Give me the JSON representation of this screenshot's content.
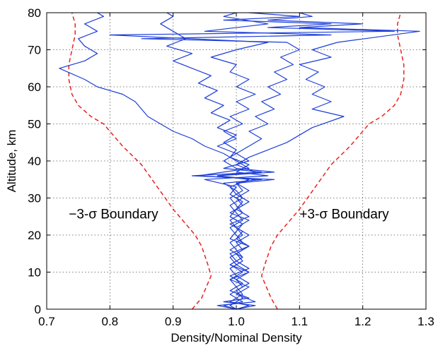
{
  "chart_data": {
    "type": "line",
    "title": "",
    "xlabel": "Density/Nominal Density",
    "ylabel": "Altitude, km",
    "xlim": [
      0.7,
      1.3
    ],
    "ylim": [
      0,
      80
    ],
    "xticks": [
      0.7,
      0.8,
      0.9,
      1.0,
      1.1,
      1.2,
      1.3
    ],
    "xtick_labels": [
      "0.7",
      "0.8",
      "0.9",
      "1.0",
      "1.1",
      "1.2",
      "1.3"
    ],
    "yticks": [
      0,
      10,
      20,
      30,
      40,
      50,
      60,
      70,
      80
    ],
    "ytick_labels": [
      "0",
      "10",
      "20",
      "30",
      "40",
      "50",
      "60",
      "70",
      "80"
    ],
    "grid": true,
    "grid_style": "dotted",
    "annotations": [
      {
        "text": "−3-σ Boundary",
        "x": 0.735,
        "y": 24.5
      },
      {
        "text": "+3-σ Boundary",
        "x": 1.1,
        "y": 24.5
      }
    ],
    "boundaries": [
      {
        "name": "minus-3-sigma",
        "color": "#e8231e",
        "style": "dashed",
        "points": [
          [
            0.93,
            0
          ],
          [
            0.945,
            3
          ],
          [
            0.955,
            7
          ],
          [
            0.96,
            9
          ],
          [
            0.955,
            12
          ],
          [
            0.945,
            17
          ],
          [
            0.935,
            20
          ],
          [
            0.92,
            23
          ],
          [
            0.9,
            27
          ],
          [
            0.875,
            33
          ],
          [
            0.85,
            39
          ],
          [
            0.82,
            44
          ],
          [
            0.8,
            48
          ],
          [
            0.79,
            50
          ],
          [
            0.77,
            52
          ],
          [
            0.75,
            55
          ],
          [
            0.74,
            58
          ],
          [
            0.735,
            62
          ],
          [
            0.735,
            66
          ],
          [
            0.74,
            70
          ],
          [
            0.745,
            74
          ],
          [
            0.745,
            77
          ],
          [
            0.74,
            80
          ]
        ]
      },
      {
        "name": "plus-3-sigma",
        "color": "#e8231e",
        "style": "dashed",
        "points": [
          [
            1.065,
            0
          ],
          [
            1.055,
            3
          ],
          [
            1.045,
            7
          ],
          [
            1.04,
            9
          ],
          [
            1.045,
            12
          ],
          [
            1.055,
            17
          ],
          [
            1.065,
            20
          ],
          [
            1.08,
            23
          ],
          [
            1.1,
            27
          ],
          [
            1.125,
            33
          ],
          [
            1.15,
            39
          ],
          [
            1.18,
            44
          ],
          [
            1.2,
            48
          ],
          [
            1.21,
            50
          ],
          [
            1.23,
            52
          ],
          [
            1.25,
            55
          ],
          [
            1.26,
            58
          ],
          [
            1.265,
            62
          ],
          [
            1.265,
            66
          ],
          [
            1.26,
            70
          ],
          [
            1.255,
            74
          ],
          [
            1.255,
            77
          ],
          [
            1.26,
            80
          ]
        ]
      }
    ],
    "series": [
      {
        "color": "#1c3dd8",
        "points": [
          [
            1.0,
            0
          ],
          [
            1.03,
            1
          ],
          [
            0.98,
            2
          ],
          [
            1.02,
            3
          ],
          [
            0.99,
            5
          ],
          [
            1.01,
            7
          ],
          [
            0.99,
            9
          ],
          [
            1.02,
            11
          ],
          [
            1.0,
            13
          ],
          [
            0.99,
            15
          ],
          [
            1.02,
            17
          ],
          [
            1.0,
            19
          ],
          [
            1.01,
            21
          ],
          [
            0.99,
            23
          ],
          [
            1.02,
            25
          ],
          [
            1.0,
            27
          ],
          [
            1.01,
            29
          ],
          [
            0.99,
            31
          ],
          [
            1.0,
            33
          ],
          [
            0.95,
            35
          ],
          [
            1.05,
            36
          ],
          [
            1.0,
            37
          ],
          [
            1.02,
            39
          ],
          [
            0.99,
            41
          ],
          [
            1.0,
            43
          ],
          [
            0.98,
            45
          ],
          [
            1.0,
            47
          ],
          [
            0.97,
            49
          ],
          [
            0.99,
            51
          ],
          [
            0.96,
            53
          ],
          [
            0.98,
            55
          ],
          [
            0.95,
            57
          ],
          [
            0.97,
            59
          ],
          [
            0.94,
            61
          ],
          [
            0.96,
            63
          ],
          [
            0.93,
            65
          ],
          [
            0.9,
            67
          ],
          [
            0.93,
            69
          ],
          [
            0.89,
            71
          ],
          [
            0.92,
            73
          ],
          [
            0.9,
            75
          ],
          [
            0.88,
            77
          ],
          [
            0.9,
            79
          ],
          [
            0.89,
            80
          ]
        ]
      },
      {
        "color": "#1c3dd8",
        "points": [
          [
            1.0,
            0
          ],
          [
            0.97,
            1
          ],
          [
            1.03,
            2
          ],
          [
            1.0,
            4
          ],
          [
            1.02,
            6
          ],
          [
            0.99,
            8
          ],
          [
            1.01,
            10
          ],
          [
            0.99,
            12
          ],
          [
            1.01,
            14
          ],
          [
            1.0,
            16
          ],
          [
            0.99,
            18
          ],
          [
            1.01,
            20
          ],
          [
            1.0,
            22
          ],
          [
            1.02,
            24
          ],
          [
            0.99,
            26
          ],
          [
            1.01,
            28
          ],
          [
            1.0,
            30
          ],
          [
            1.02,
            32
          ],
          [
            1.0,
            34
          ],
          [
            1.06,
            35
          ],
          [
            0.93,
            36
          ],
          [
            1.04,
            37
          ],
          [
            0.98,
            38
          ],
          [
            1.02,
            40
          ],
          [
            1.0,
            42
          ],
          [
            1.02,
            44
          ],
          [
            1.04,
            46
          ],
          [
            1.02,
            48
          ],
          [
            1.05,
            50
          ],
          [
            1.03,
            52
          ],
          [
            1.06,
            54
          ],
          [
            1.04,
            56
          ],
          [
            1.07,
            58
          ],
          [
            1.05,
            60
          ],
          [
            1.08,
            62
          ],
          [
            1.06,
            64
          ],
          [
            1.09,
            66
          ],
          [
            1.07,
            68
          ],
          [
            1.1,
            70
          ],
          [
            1.08,
            72
          ],
          [
            0.85,
            73
          ],
          [
            1.15,
            74
          ],
          [
            0.95,
            75
          ],
          [
            1.05,
            77
          ],
          [
            0.98,
            79
          ],
          [
            1.0,
            80
          ]
        ]
      },
      {
        "color": "#1c3dd8",
        "points": [
          [
            1.0,
            0
          ],
          [
            1.02,
            1
          ],
          [
            0.99,
            2
          ],
          [
            1.01,
            4
          ],
          [
            1.0,
            6
          ],
          [
            0.99,
            8
          ],
          [
            1.02,
            10
          ],
          [
            1.0,
            12
          ],
          [
            0.99,
            14
          ],
          [
            1.01,
            16
          ],
          [
            1.0,
            18
          ],
          [
            1.02,
            20
          ],
          [
            1.0,
            22
          ],
          [
            0.99,
            24
          ],
          [
            1.01,
            26
          ],
          [
            1.0,
            28
          ],
          [
            0.99,
            30
          ],
          [
            1.01,
            32
          ],
          [
            1.0,
            34
          ],
          [
            1.03,
            35
          ],
          [
            0.97,
            36
          ],
          [
            1.06,
            37
          ],
          [
            1.0,
            38
          ],
          [
            0.98,
            40
          ],
          [
            1.0,
            42
          ],
          [
            0.97,
            44
          ],
          [
            1.0,
            46
          ],
          [
            0.98,
            48
          ],
          [
            1.01,
            50
          ],
          [
            0.99,
            52
          ],
          [
            1.02,
            54
          ],
          [
            1.0,
            56
          ],
          [
            1.03,
            58
          ],
          [
            1.0,
            60
          ],
          [
            1.02,
            62
          ],
          [
            0.99,
            64
          ],
          [
            1.0,
            66
          ],
          [
            0.96,
            68
          ],
          [
            1.0,
            70
          ],
          [
            1.05,
            72
          ],
          [
            0.8,
            74
          ],
          [
            1.25,
            75
          ],
          [
            1.05,
            76
          ],
          [
            1.15,
            77
          ],
          [
            0.98,
            78
          ],
          [
            1.1,
            79
          ],
          [
            1.02,
            80
          ]
        ]
      },
      {
        "color": "#1c3dd8",
        "points": [
          [
            1.0,
            0
          ],
          [
            0.99,
            1
          ],
          [
            1.01,
            3
          ],
          [
            1.0,
            5
          ],
          [
            1.02,
            7
          ],
          [
            1.0,
            9
          ],
          [
            0.99,
            11
          ],
          [
            1.01,
            13
          ],
          [
            1.0,
            15
          ],
          [
            1.02,
            17
          ],
          [
            0.99,
            19
          ],
          [
            1.0,
            21
          ],
          [
            1.01,
            23
          ],
          [
            0.99,
            25
          ],
          [
            1.0,
            27
          ],
          [
            1.02,
            29
          ],
          [
            1.0,
            31
          ],
          [
            0.99,
            33
          ],
          [
            1.02,
            35
          ],
          [
            0.97,
            36
          ],
          [
            1.03,
            37
          ],
          [
            1.0,
            39
          ],
          [
            1.02,
            41
          ],
          [
            1.05,
            43
          ],
          [
            1.08,
            45
          ],
          [
            1.1,
            47
          ],
          [
            1.12,
            49
          ],
          [
            1.17,
            52
          ],
          [
            1.12,
            54
          ],
          [
            1.15,
            56
          ],
          [
            1.12,
            58
          ],
          [
            1.14,
            60
          ],
          [
            1.11,
            62
          ],
          [
            1.13,
            64
          ],
          [
            1.1,
            66
          ],
          [
            1.15,
            68
          ],
          [
            1.12,
            70
          ],
          [
            1.16,
            72
          ],
          [
            1.29,
            75
          ],
          [
            1.1,
            76
          ],
          [
            1.2,
            77
          ],
          [
            1.05,
            78
          ],
          [
            1.12,
            79
          ],
          [
            1.1,
            80
          ]
        ]
      },
      {
        "color": "#1c3dd8",
        "points": [
          [
            1.0,
            0
          ],
          [
            0.98,
            1
          ],
          [
            1.01,
            2
          ],
          [
            0.99,
            4
          ],
          [
            1.01,
            6
          ],
          [
            1.0,
            8
          ],
          [
            1.02,
            10
          ],
          [
            0.99,
            12
          ],
          [
            1.01,
            14
          ],
          [
            0.99,
            16
          ],
          [
            1.01,
            18
          ],
          [
            1.0,
            20
          ],
          [
            0.99,
            22
          ],
          [
            1.01,
            24
          ],
          [
            1.0,
            26
          ],
          [
            0.99,
            28
          ],
          [
            1.01,
            30
          ],
          [
            1.0,
            32
          ],
          [
            0.98,
            34
          ],
          [
            1.04,
            35
          ],
          [
            0.94,
            36
          ],
          [
            1.02,
            38
          ],
          [
            1.0,
            40
          ],
          [
            0.98,
            42
          ],
          [
            0.95,
            44
          ],
          [
            0.93,
            46
          ],
          [
            0.9,
            48
          ],
          [
            0.88,
            50
          ],
          [
            0.86,
            52
          ],
          [
            0.85,
            54
          ],
          [
            0.84,
            56
          ],
          [
            0.82,
            58
          ],
          [
            0.78,
            60
          ],
          [
            0.76,
            62
          ],
          [
            0.72,
            65
          ],
          [
            0.76,
            67
          ],
          [
            0.78,
            69
          ],
          [
            0.76,
            71
          ],
          [
            0.75,
            73
          ],
          [
            0.78,
            75
          ],
          [
            0.76,
            77
          ],
          [
            0.79,
            79
          ],
          [
            0.78,
            80
          ]
        ]
      }
    ]
  }
}
